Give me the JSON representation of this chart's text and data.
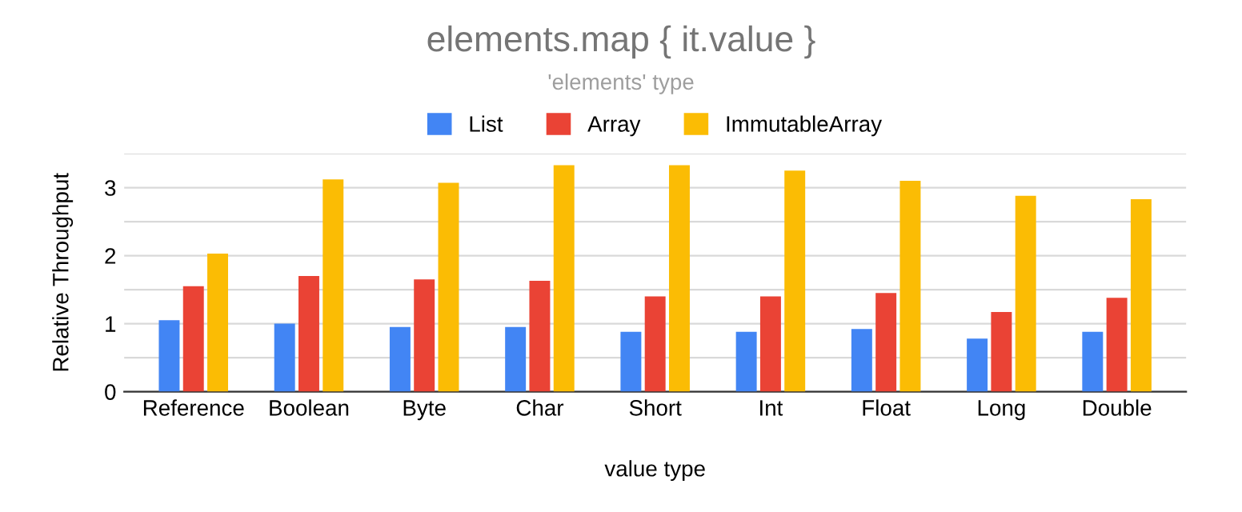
{
  "chart_data": {
    "type": "bar",
    "title": "elements.map { it.value }",
    "subtitle": "'elements' type",
    "xlabel": "value type",
    "ylabel": "Relative Throughput",
    "categories": [
      "Reference",
      "Boolean",
      "Byte",
      "Char",
      "Short",
      "Int",
      "Float",
      "Long",
      "Double"
    ],
    "series": [
      {
        "name": "List",
        "color": "#4285f4",
        "values": [
          1.05,
          1.0,
          0.95,
          0.95,
          0.88,
          0.88,
          0.92,
          0.78,
          0.88
        ]
      },
      {
        "name": "Array",
        "color": "#ea4335",
        "values": [
          1.55,
          1.7,
          1.65,
          1.63,
          1.4,
          1.4,
          1.45,
          1.17,
          1.38
        ]
      },
      {
        "name": "ImmutableArray",
        "color": "#fbbc04",
        "values": [
          2.03,
          3.12,
          3.07,
          3.33,
          3.33,
          3.25,
          3.1,
          2.88,
          2.83
        ]
      }
    ],
    "ylim": [
      0,
      3.5
    ],
    "yticks": [
      0,
      {
        "value": 0.5,
        "label": null
      },
      1,
      {
        "value": 1.5,
        "label": null
      },
      2,
      {
        "value": 2.5,
        "label": null
      },
      3,
      {
        "value": 3.5,
        "label": null
      }
    ],
    "grid": "y",
    "legend": "top"
  }
}
